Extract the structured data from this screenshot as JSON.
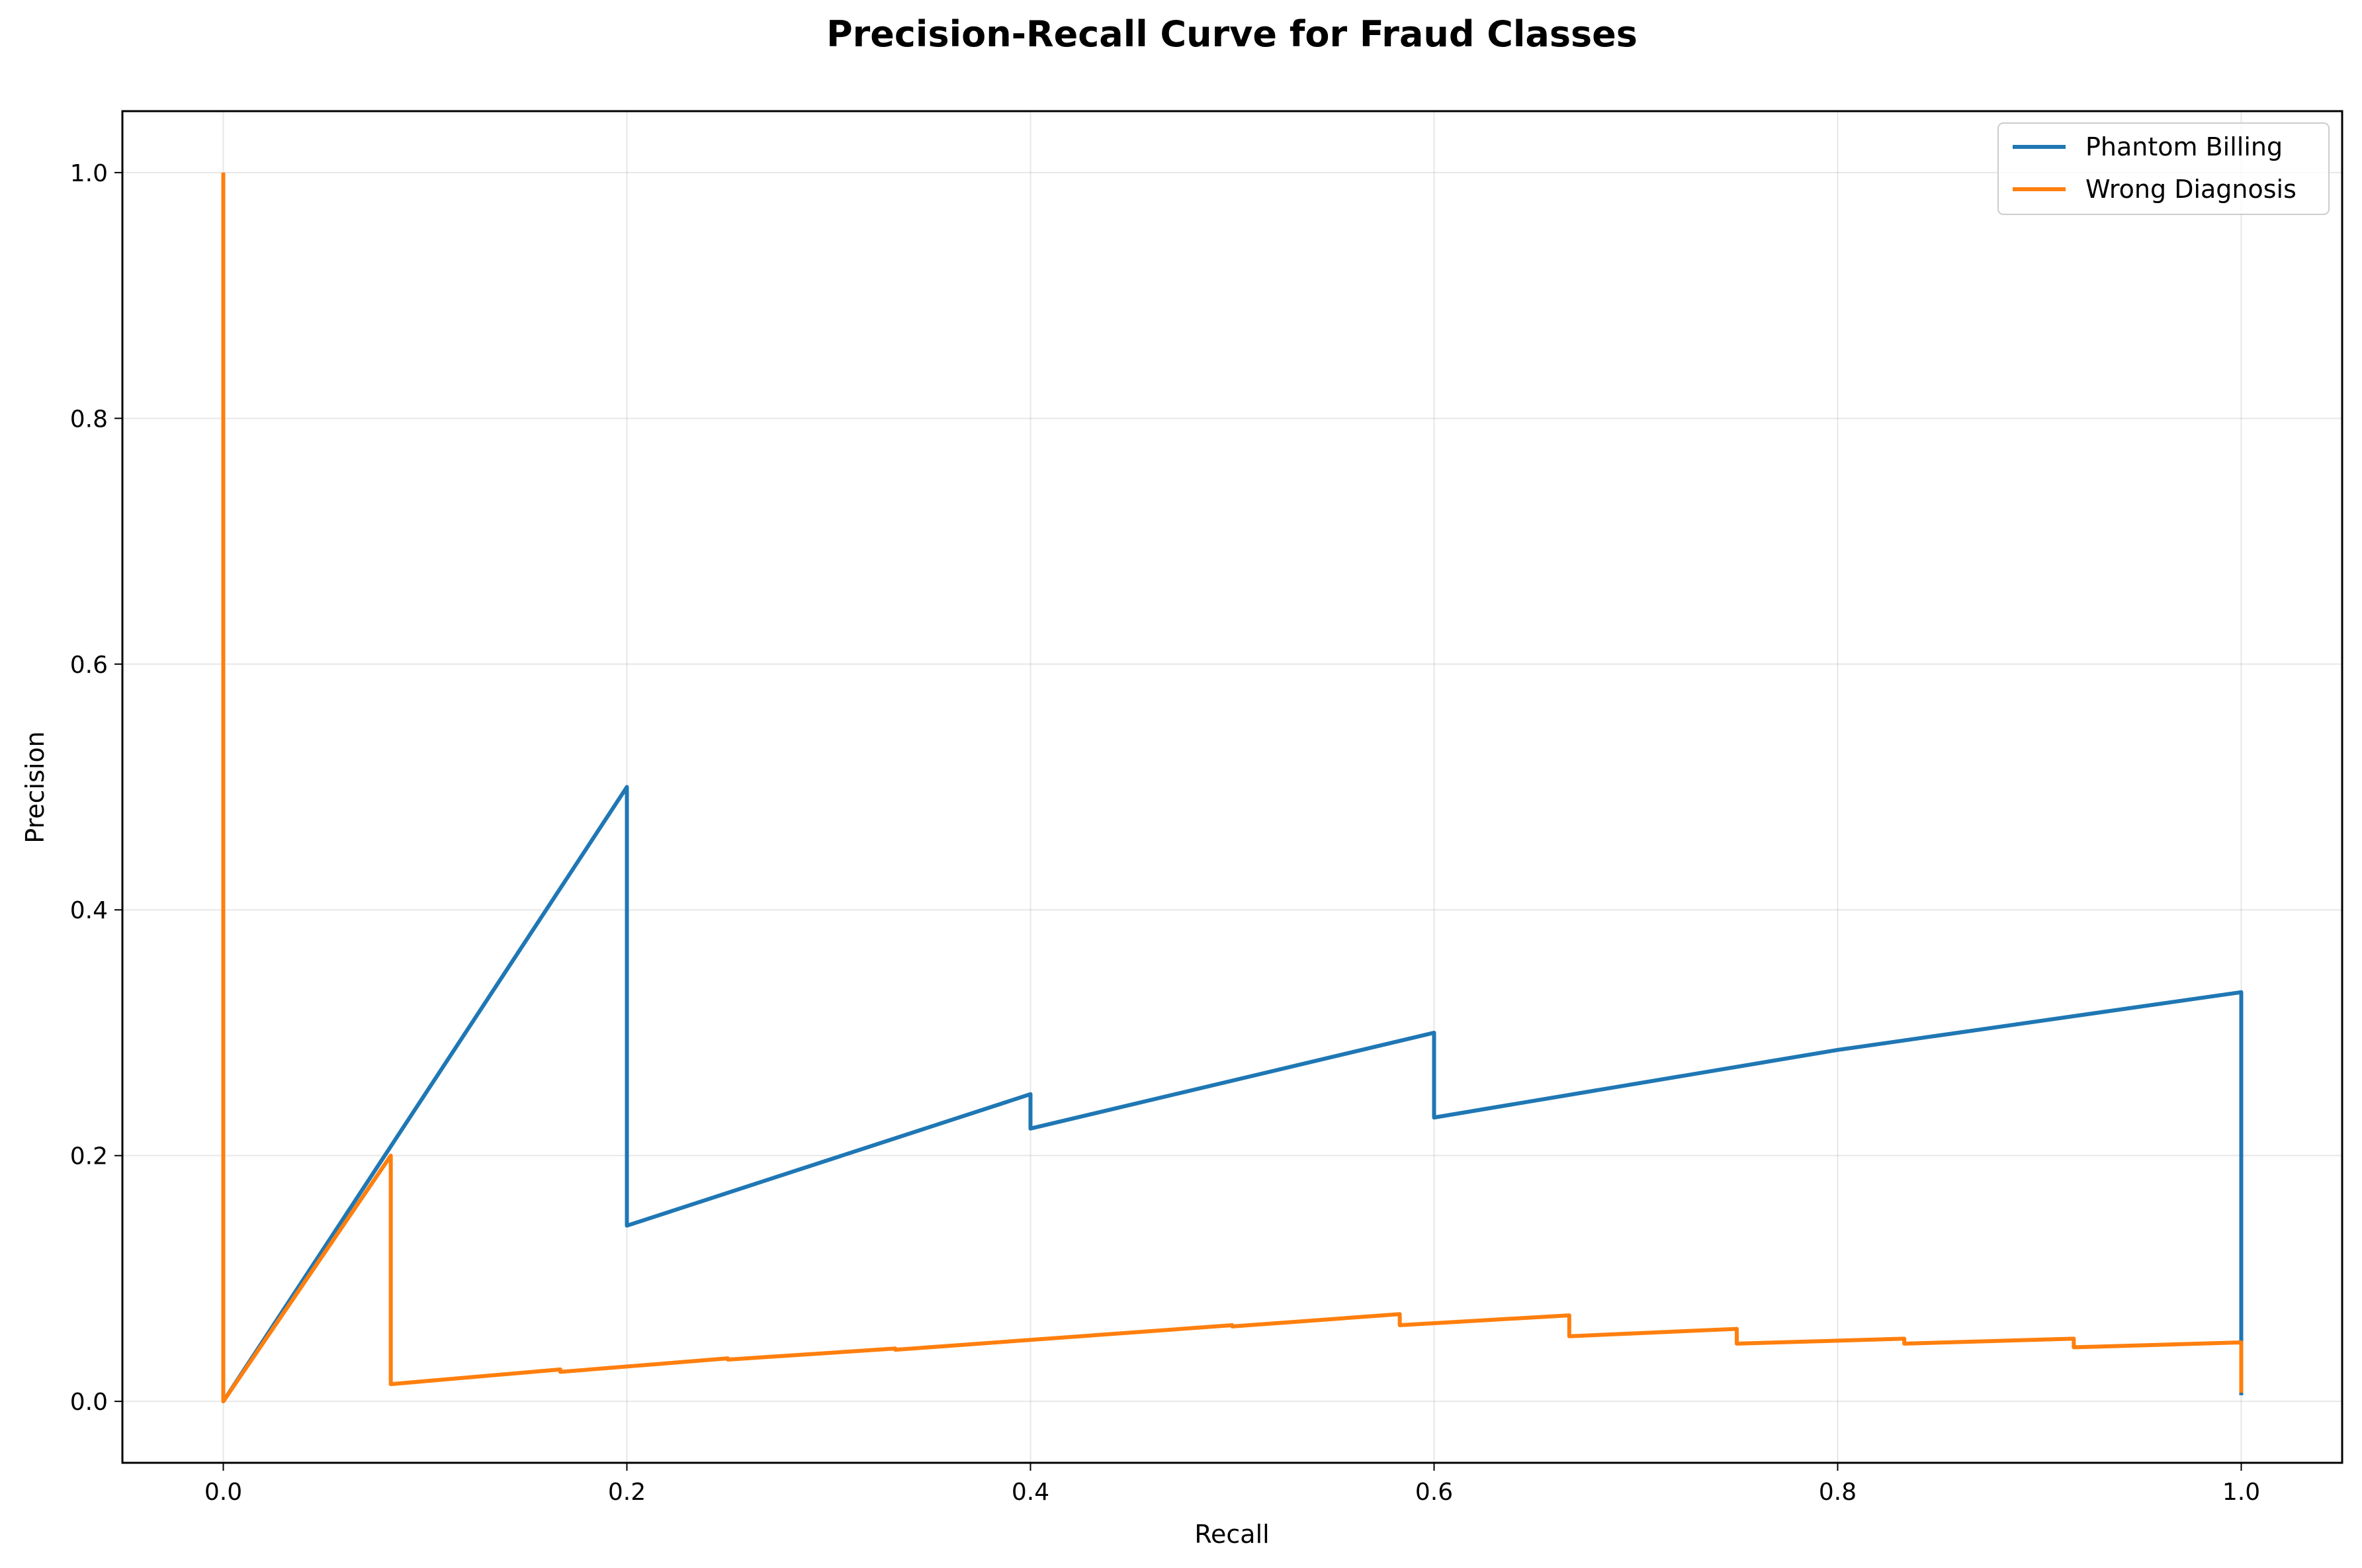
{
  "chart_data": {
    "type": "line",
    "title": "Precision-Recall Curve for Fraud Classes",
    "xlabel": "Recall",
    "ylabel": "Precision",
    "xlim": [
      -0.05,
      1.05
    ],
    "ylim": [
      -0.05,
      1.05
    ],
    "xticks": [
      0.0,
      0.2,
      0.4,
      0.6,
      0.8,
      1.0
    ],
    "xtick_labels": [
      "0.0",
      "0.2",
      "0.4",
      "0.6",
      "0.8",
      "1.0"
    ],
    "yticks": [
      0.0,
      0.2,
      0.4,
      0.6,
      0.8,
      1.0
    ],
    "ytick_labels": [
      "0.0",
      "0.2",
      "0.4",
      "0.6",
      "0.8",
      "1.0"
    ],
    "grid": true,
    "legend_position": "top-right",
    "series": [
      {
        "name": "Phantom Billing",
        "color": "#1f77b4",
        "points": [
          [
            0.0,
            0.0
          ],
          [
            0.2,
            0.5
          ],
          [
            0.2,
            0.143
          ],
          [
            0.4,
            0.25
          ],
          [
            0.4,
            0.222
          ],
          [
            0.6,
            0.3
          ],
          [
            0.6,
            0.231
          ],
          [
            0.8,
            0.286
          ],
          [
            1.0,
            0.333
          ],
          [
            1.0,
            0.005
          ]
        ]
      },
      {
        "name": "Wrong Diagnosis",
        "color": "#ff7f0e",
        "points": [
          [
            0.0,
            1.0
          ],
          [
            0.0,
            0.0
          ],
          [
            0.083,
            0.2
          ],
          [
            0.083,
            0.014
          ],
          [
            0.167,
            0.026
          ],
          [
            0.167,
            0.024
          ],
          [
            0.25,
            0.035
          ],
          [
            0.25,
            0.034
          ],
          [
            0.333,
            0.043
          ],
          [
            0.333,
            0.042
          ],
          [
            0.5,
            0.062
          ],
          [
            0.5,
            0.061
          ],
          [
            0.583,
            0.071
          ],
          [
            0.583,
            0.062
          ],
          [
            0.667,
            0.07
          ],
          [
            0.667,
            0.053
          ],
          [
            0.75,
            0.059
          ],
          [
            0.75,
            0.047
          ],
          [
            0.833,
            0.051
          ],
          [
            0.833,
            0.047
          ],
          [
            0.917,
            0.051
          ],
          [
            0.917,
            0.044
          ],
          [
            1.0,
            0.048
          ],
          [
            1.0,
            0.007
          ]
        ]
      }
    ]
  }
}
